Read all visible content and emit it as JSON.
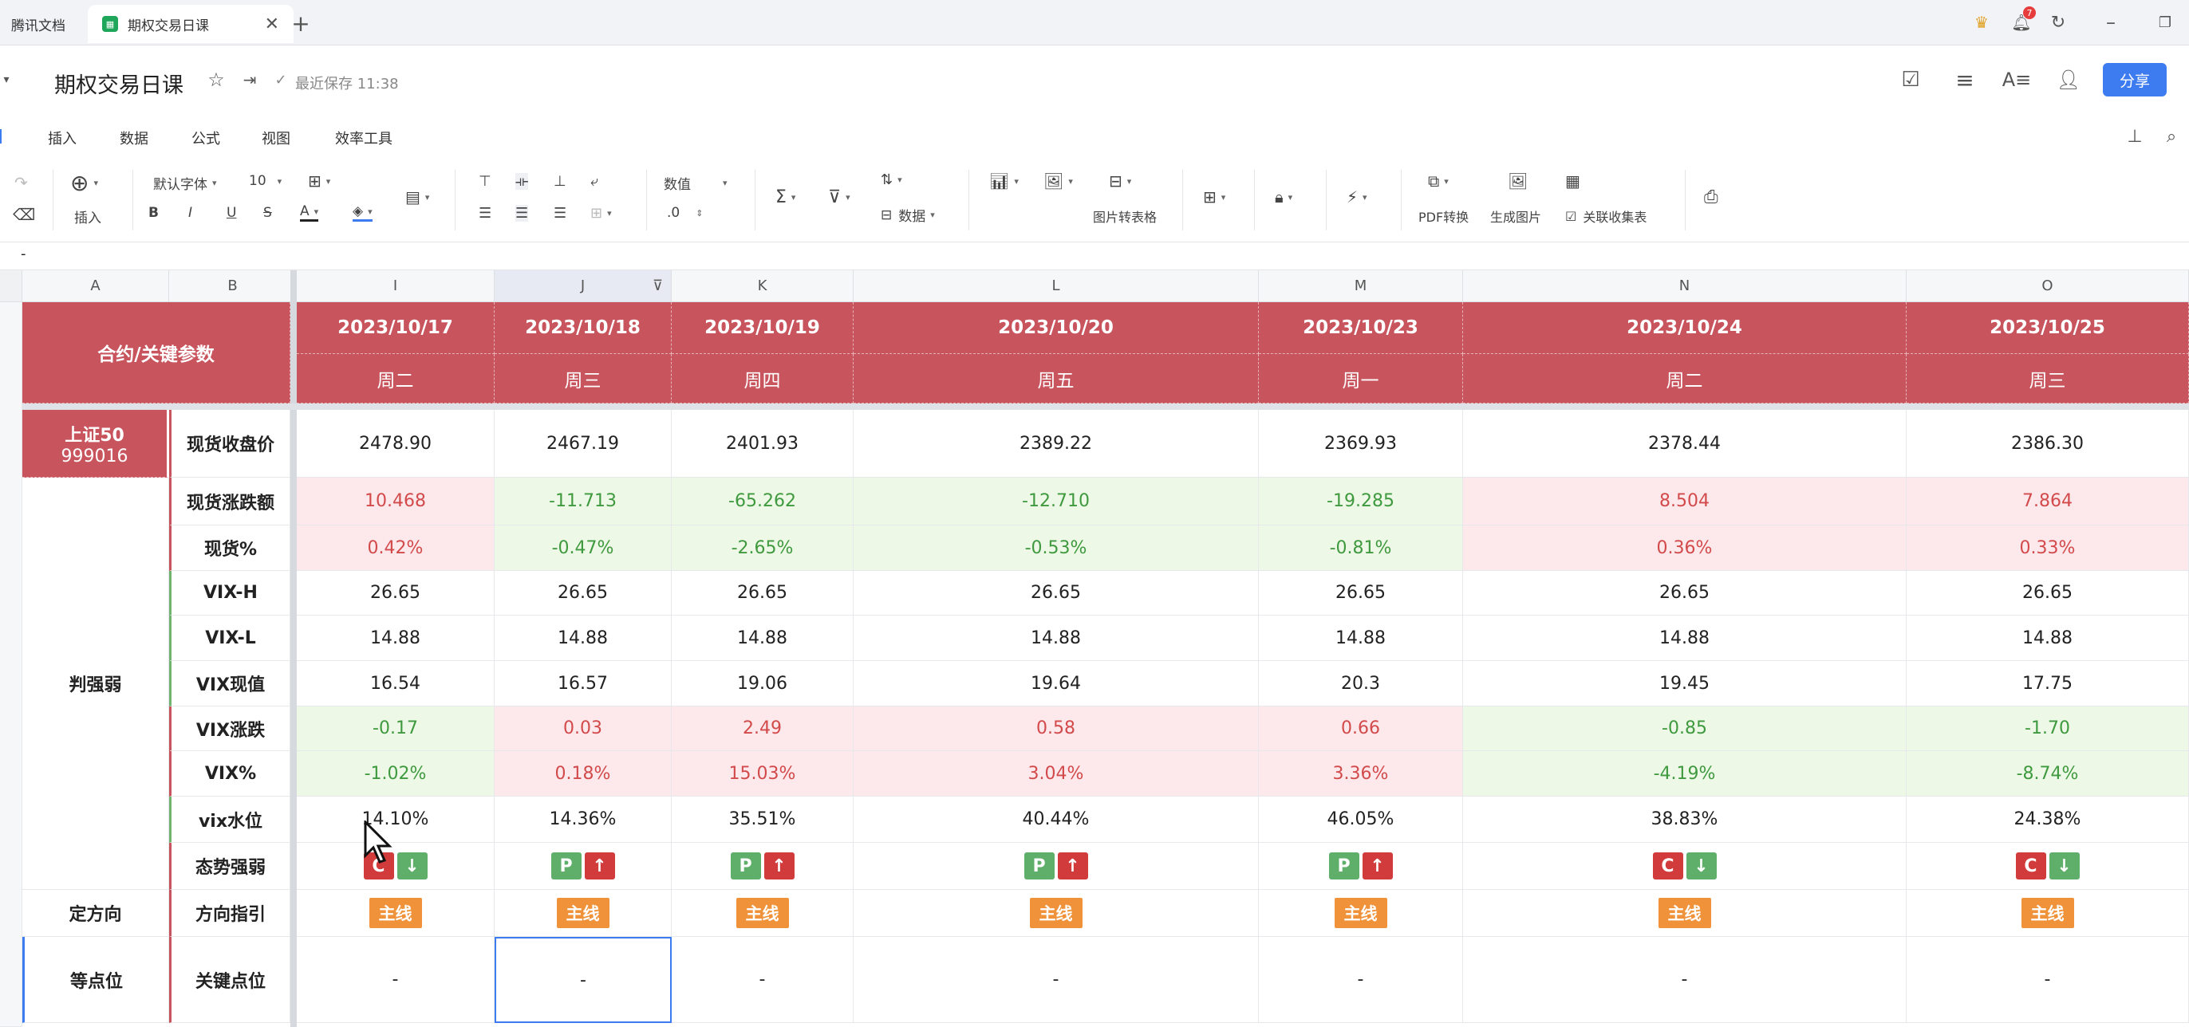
{
  "browser": {
    "tabs": [
      {
        "label": "腾讯文档",
        "active": false
      },
      {
        "label": "期权交易日课",
        "active": true
      }
    ],
    "notification_count": "7"
  },
  "doc": {
    "title": "期权交易日课",
    "save_status": "最近保存 11:38",
    "share_label": "分享"
  },
  "menu": [
    "插入",
    "数据",
    "公式",
    "视图",
    "效率工具"
  ],
  "toolbar": {
    "insert_label": "插入",
    "font_name": "默认字体",
    "font_size": "10",
    "number_format": "数值",
    "decimal": ".0",
    "data_label": "数据",
    "image_to_table": "图片转表格",
    "pdf_convert": "PDF转换",
    "gen_image": "生成图片",
    "link_collect": "关联收集表"
  },
  "formula_bar": {
    "value": "-"
  },
  "colors": {
    "header_red": "#c8545d",
    "up_red": "#d24a4a",
    "down_green": "#3f9a3f",
    "accent_blue": "#3d7cf0",
    "tag_orange": "#f0923a"
  },
  "sheet": {
    "col_letters": [
      "A",
      "B",
      "I",
      "J",
      "K",
      "L",
      "M",
      "N",
      "O"
    ],
    "header_title": "合约/关键参数",
    "dates": [
      "2023/10/17",
      "2023/10/18",
      "2023/10/19",
      "2023/10/20",
      "2023/10/23",
      "2023/10/24",
      "2023/10/25"
    ],
    "weekdays": [
      "周二",
      "周三",
      "周四",
      "周五",
      "周一",
      "周二",
      "周三"
    ],
    "index_name": "上证50",
    "index_code": "999016",
    "group_strength": "判强弱",
    "group_direction": "定方向",
    "group_level": "等点位",
    "rows": [
      {
        "label": "现货收盘价",
        "style": "plain",
        "values": [
          "2478.90",
          "2467.19",
          "2401.93",
          "2389.22",
          "2369.93",
          "2378.44",
          "2386.30"
        ]
      },
      {
        "label": "现货涨跌额",
        "style": "signed",
        "values": [
          "10.468",
          "-11.713",
          "-65.262",
          "-12.710",
          "-19.285",
          "8.504",
          "7.864"
        ]
      },
      {
        "label": "现货%",
        "style": "signed",
        "values": [
          "0.42%",
          "-0.47%",
          "-2.65%",
          "-0.53%",
          "-0.81%",
          "0.36%",
          "0.33%"
        ]
      },
      {
        "label": "VIX-H",
        "style": "plain",
        "values": [
          "26.65",
          "26.65",
          "26.65",
          "26.65",
          "26.65",
          "26.65",
          "26.65"
        ]
      },
      {
        "label": "VIX-L",
        "style": "plain",
        "values": [
          "14.88",
          "14.88",
          "14.88",
          "14.88",
          "14.88",
          "14.88",
          "14.88"
        ]
      },
      {
        "label": "VIX现值",
        "style": "plain",
        "values": [
          "16.54",
          "16.57",
          "19.06",
          "19.64",
          "20.3",
          "19.45",
          "17.75"
        ]
      },
      {
        "label": "VIX涨跌",
        "style": "signed",
        "values": [
          "-0.17",
          "0.03",
          "2.49",
          "0.58",
          "0.66",
          "-0.85",
          "-1.70"
        ]
      },
      {
        "label": "VIX%",
        "style": "signed",
        "values": [
          "-1.02%",
          "0.18%",
          "15.03%",
          "3.04%",
          "3.36%",
          "-4.19%",
          "-8.74%"
        ]
      },
      {
        "label": "vix水位",
        "style": "plain",
        "values": [
          "14.10%",
          "14.36%",
          "35.51%",
          "40.44%",
          "46.05%",
          "38.83%",
          "24.38%"
        ]
      }
    ],
    "trend_label": "态势强弱",
    "trend": [
      {
        "type": "C",
        "dir": "↓"
      },
      {
        "type": "P",
        "dir": "↑"
      },
      {
        "type": "P",
        "dir": "↑"
      },
      {
        "type": "P",
        "dir": "↑"
      },
      {
        "type": "P",
        "dir": "↑"
      },
      {
        "type": "C",
        "dir": "↓"
      },
      {
        "type": "C",
        "dir": "↓"
      }
    ],
    "direction_label": "方向指引",
    "direction_tag": "主线",
    "keylevel_label": "关键点位",
    "keylevel_values": [
      "-",
      "-",
      "-",
      "-",
      "-",
      "-",
      "-"
    ]
  }
}
